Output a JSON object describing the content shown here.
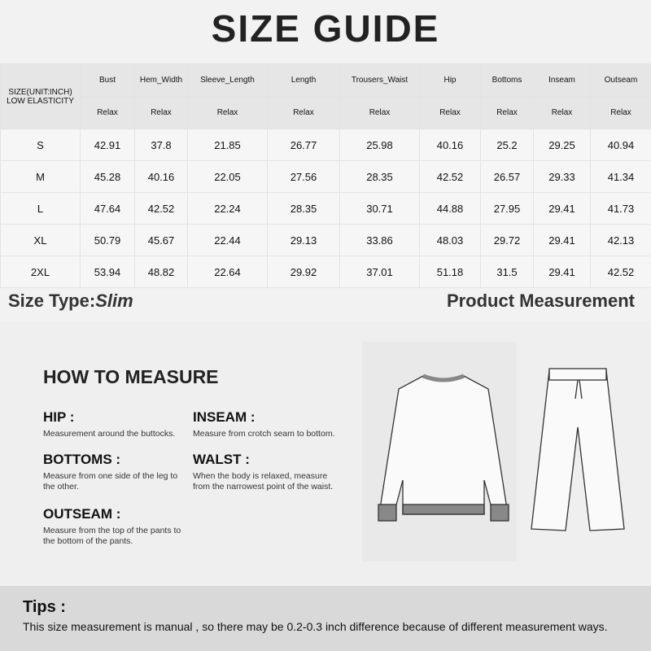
{
  "header": {
    "title": "SIZE GUIDE"
  },
  "table": {
    "corner": [
      "SIZE(UNIT:INCH)",
      "LOW ELASTICITY"
    ],
    "columns": [
      {
        "name": "Bust",
        "sub": "Relax"
      },
      {
        "name": "Hem_Width",
        "sub": "Relax"
      },
      {
        "name": "Sleeve_Length",
        "sub": "Relax"
      },
      {
        "name": "Length",
        "sub": "Relax"
      },
      {
        "name": "Trousers_Waist",
        "sub": "Relax"
      },
      {
        "name": "Hip",
        "sub": "Relax"
      },
      {
        "name": "Bottoms",
        "sub": "Relax"
      },
      {
        "name": "Inseam",
        "sub": "Relax"
      },
      {
        "name": "Outseam",
        "sub": "Relax"
      }
    ],
    "rows": [
      {
        "size": "S",
        "values": [
          42.91,
          37.8,
          21.85,
          26.77,
          25.98,
          40.16,
          25.2,
          29.25,
          40.94
        ]
      },
      {
        "size": "M",
        "values": [
          45.28,
          40.16,
          22.05,
          27.56,
          28.35,
          42.52,
          26.57,
          29.33,
          41.34
        ]
      },
      {
        "size": "L",
        "values": [
          47.64,
          42.52,
          22.24,
          28.35,
          30.71,
          44.88,
          27.95,
          29.41,
          41.73
        ]
      },
      {
        "size": "XL",
        "values": [
          50.79,
          45.67,
          22.44,
          29.13,
          33.86,
          48.03,
          29.72,
          29.41,
          42.13
        ]
      },
      {
        "size": "2XL",
        "values": [
          53.94,
          48.82,
          22.64,
          29.92,
          37.01,
          51.18,
          31.5,
          29.41,
          42.52
        ]
      }
    ]
  },
  "size_type": {
    "label": "Size Type:",
    "value": "Slim"
  },
  "product_measurement": "Product Measurement",
  "how_to": {
    "title": "HOW TO MEASURE",
    "items": [
      {
        "term": "HIP :",
        "desc": "Measurement around the buttocks."
      },
      {
        "term": "INSEAM :",
        "desc": "Measure from crotch seam to bottom."
      },
      {
        "term": "BOTTOMS :",
        "desc": "Measure from one side of the leg to the other."
      },
      {
        "term": "WALST :",
        "desc": "When the body is relaxed, measure from the narrowest point of the waist."
      },
      {
        "term": "OUTSEAM :",
        "desc": "Measure from the top of the pants to the bottom of the pants."
      }
    ]
  },
  "tips": {
    "title": "Tips :",
    "text": "This size measurement is manual , so there may be 0.2-0.3 inch difference because of different measurement ways."
  }
}
